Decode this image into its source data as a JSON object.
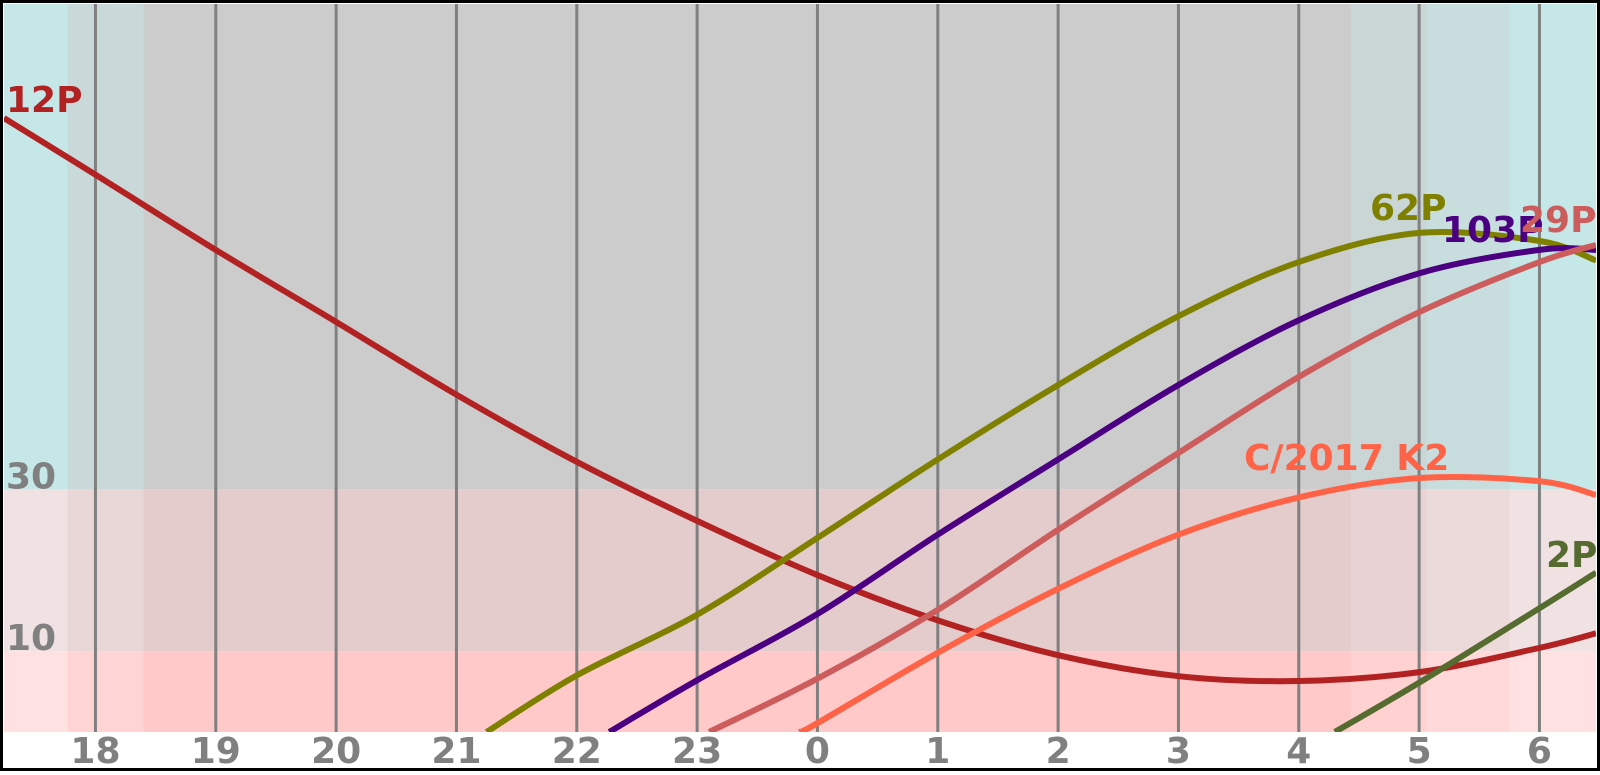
{
  "chart_data": {
    "type": "line",
    "xlim": [
      17.24,
      30.47
    ],
    "ylim": [
      0,
      90
    ],
    "xticks": [
      18,
      19,
      20,
      21,
      22,
      23,
      {
        "value": 24,
        "label": "0"
      },
      {
        "value": 25,
        "label": "1"
      },
      {
        "value": 26,
        "label": "2"
      },
      {
        "value": 27,
        "label": "3"
      },
      {
        "value": 28,
        "label": "4"
      },
      {
        "value": 29,
        "label": "5"
      },
      {
        "value": 30,
        "label": "6"
      }
    ],
    "yticks": [
      10,
      30
    ],
    "zone_colors": [
      "#ffc9c9",
      "#e4cbcc",
      "#cccccc"
    ],
    "twilight": [
      {
        "from": 17.24,
        "to": 17.77,
        "opacity": 0.75
      },
      {
        "from": 17.77,
        "to": 18.4,
        "opacity": 0.35
      },
      {
        "from": 28.43,
        "to": 29.06,
        "opacity": 0.25
      },
      {
        "from": 29.06,
        "to": 29.75,
        "opacity": 0.5
      },
      {
        "from": 29.75,
        "to": 30.47,
        "opacity": 0.75
      }
    ],
    "grid": true,
    "series": [
      {
        "name": "12P",
        "color": "#b22222",
        "x": [
          17.24,
          18,
          19,
          20,
          21,
          22,
          23,
          24,
          25,
          26,
          27,
          28,
          29,
          30,
          30.47
        ],
        "values": [
          75.9,
          68.9,
          59.6,
          50.7,
          41.7,
          33.4,
          26.1,
          19.4,
          13.8,
          9.5,
          6.9,
          6.3,
          7.4,
          10.4,
          12.2
        ]
      },
      {
        "name": "62P",
        "color": "#808000",
        "x": [
          21.25,
          22,
          23,
          24,
          25,
          26,
          27,
          28,
          29,
          30,
          30.47
        ],
        "values": [
          0,
          7,
          14.5,
          24,
          33.7,
          42.9,
          51.4,
          58.1,
          61.7,
          60.7,
          58.3
        ]
      },
      {
        "name": "103P",
        "color": "#4b0082",
        "x": [
          22.27,
          23,
          24,
          25,
          26,
          27,
          28,
          29,
          30,
          30.47
        ],
        "values": [
          0,
          6.4,
          14.6,
          24.4,
          33.7,
          42.9,
          50.9,
          56.7,
          59.6,
          59.6
        ]
      },
      {
        "name": "29P",
        "color": "#cd5c5c",
        "x": [
          23.1,
          24,
          25,
          26,
          27,
          28,
          29,
          30,
          30.47
        ],
        "values": [
          0,
          6.6,
          15.1,
          25,
          34.5,
          43.9,
          51.9,
          58.1,
          60.2
        ]
      },
      {
        "name": "C/2017 K2",
        "color": "#ff6347",
        "x": [
          23.85,
          24,
          25,
          26,
          27,
          28,
          29,
          30,
          30.47
        ],
        "values": [
          0,
          1.1,
          9.8,
          17.7,
          24.4,
          29,
          31.4,
          31,
          29.3
        ]
      },
      {
        "name": "2P",
        "color": "#556b2f",
        "x": [
          28.3,
          29,
          30,
          30.47
        ],
        "values": [
          0,
          6.1,
          15.3,
          19.7
        ]
      }
    ]
  }
}
